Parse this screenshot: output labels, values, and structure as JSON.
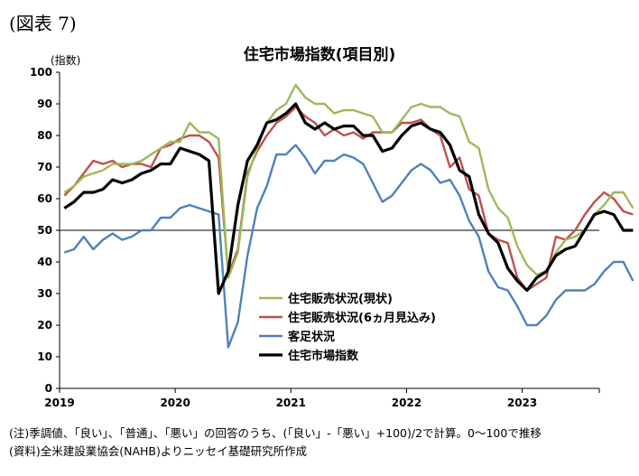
{
  "figure_label": "(図表 7)",
  "notes": {
    "note": "(注)季調値、「良い」、「普通」、「悪い」の回答のうち、(「良い」-「悪い」+100)/2で計算。0〜100で推移",
    "source": "(資料)全米建設業協会(NAHB)よりニッセイ基礎研究所作成"
  },
  "colors": {
    "current_sales": "#9bbb59",
    "future_sales": "#c0504d",
    "traffic": "#4f81bd",
    "index": "#000000",
    "reference_line": "#000000"
  },
  "chart_data": {
    "type": "line",
    "title": "住宅市場指数(項目別)",
    "ylabel": "(指数)",
    "xlabel": "",
    "ylim": [
      0,
      100
    ],
    "y_ticks": [
      0,
      10,
      20,
      30,
      40,
      50,
      60,
      70,
      80,
      90,
      100
    ],
    "x_tick_labels": [
      "2019",
      "2020",
      "2021",
      "2022",
      "2023"
    ],
    "x_start": "2019-01",
    "x_end": "2023-08",
    "reference_line": 50,
    "grid": false,
    "legend_position": "center-bottom",
    "series": [
      {
        "name": "住宅販売状況(現状)",
        "color_key": "current_sales",
        "values": [
          62,
          64,
          67,
          68,
          69,
          71,
          71,
          71,
          72,
          74,
          76,
          78,
          78,
          84,
          81,
          81,
          79,
          35,
          43,
          67,
          76,
          84,
          88,
          90,
          96,
          92,
          90,
          90,
          87,
          88,
          88,
          87,
          86,
          81,
          81,
          85,
          89,
          90,
          89,
          89,
          87,
          86,
          78,
          76,
          63,
          57,
          54,
          45,
          39,
          36,
          37,
          43,
          47,
          48,
          50,
          55,
          58,
          62,
          62,
          57
        ]
      },
      {
        "name": "住宅販売状況(6ヵ月見込み)",
        "color_key": "future_sales",
        "values": [
          61,
          64,
          68,
          72,
          71,
          72,
          70,
          71,
          71,
          70,
          76,
          77,
          79,
          80,
          80,
          78,
          73,
          36,
          44,
          68,
          75,
          80,
          84,
          86,
          89,
          86,
          84,
          80,
          82,
          80,
          81,
          79,
          81,
          81,
          81,
          84,
          84,
          85,
          82,
          80,
          70,
          73,
          63,
          61,
          49,
          47,
          46,
          35,
          31,
          33,
          35,
          48,
          47,
          50,
          55,
          59,
          62,
          60,
          56,
          55
        ]
      },
      {
        "name": "客足状況",
        "color_key": "traffic",
        "values": [
          43,
          44,
          48,
          44,
          47,
          49,
          47,
          48,
          50,
          50,
          54,
          54,
          57,
          58,
          57,
          56,
          55,
          13,
          21,
          42,
          57,
          64,
          74,
          74,
          77,
          73,
          68,
          72,
          72,
          74,
          73,
          71,
          65,
          59,
          61,
          65,
          69,
          71,
          69,
          65,
          66,
          61,
          53,
          48,
          37,
          32,
          31,
          26,
          20,
          20,
          23,
          28,
          31,
          31,
          31,
          33,
          37,
          40,
          40,
          34
        ]
      },
      {
        "name": "住宅市場指数",
        "color_key": "index",
        "values": [
          57,
          59,
          62,
          62,
          63,
          66,
          65,
          66,
          68,
          69,
          71,
          71,
          76,
          75,
          74,
          72,
          30,
          37,
          58,
          72,
          77,
          84,
          85,
          87,
          90,
          84,
          82,
          84,
          82,
          83,
          83,
          80,
          80,
          75,
          76,
          80,
          83,
          84,
          82,
          81,
          77,
          69,
          67,
          55,
          49,
          46,
          38,
          34,
          31,
          35,
          37,
          42,
          44,
          45,
          50,
          55,
          56,
          55,
          50,
          50
        ]
      }
    ]
  }
}
